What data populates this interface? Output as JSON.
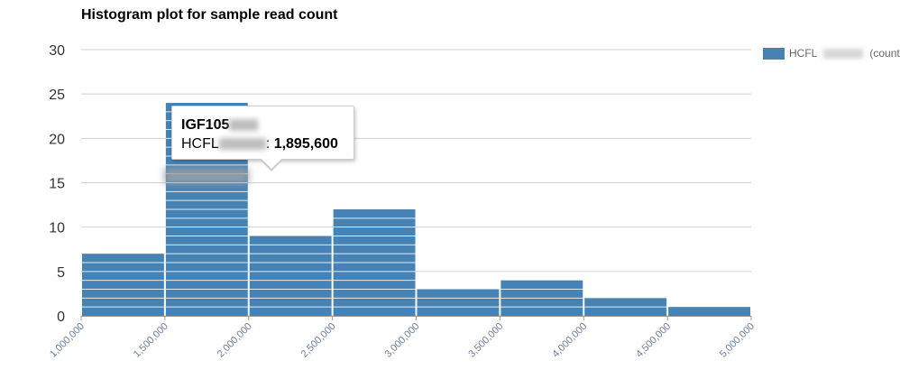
{
  "chart_data": {
    "type": "bar",
    "title": "Histogram plot for sample read count",
    "bins": [
      {
        "from": 1000000,
        "to": 1500000,
        "count": 7
      },
      {
        "from": 1500000,
        "to": 2000000,
        "count": 24
      },
      {
        "from": 2000000,
        "to": 2500000,
        "count": 9
      },
      {
        "from": 2500000,
        "to": 3000000,
        "count": 12
      },
      {
        "from": 3000000,
        "to": 3500000,
        "count": 3
      },
      {
        "from": 3500000,
        "to": 4000000,
        "count": 4
      },
      {
        "from": 4000000,
        "to": 4500000,
        "count": 2
      },
      {
        "from": 4500000,
        "to": 5000000,
        "count": 1
      }
    ],
    "x_ticks": [
      "1,000,000",
      "1,500,000",
      "2,000,000",
      "2,500,000",
      "3,000,000",
      "3,500,000",
      "4,000,000",
      "4,500,000",
      "5,000,000"
    ],
    "y_ticks": [
      "0",
      "5",
      "10",
      "15",
      "20",
      "25",
      "30"
    ],
    "xlim": [
      1000000,
      5000000
    ],
    "ylim": [
      0,
      30
    ],
    "grid": true,
    "legend": {
      "position": "top-right",
      "entries": [
        {
          "prefix": "HCFL",
          "suffix": "(count)",
          "color": "#4682b4"
        }
      ]
    },
    "series_color": "#4682b4"
  },
  "tooltip": {
    "title": "IGF105",
    "series_prefix": "HCFL",
    "separator": ":",
    "value": "1,895,600"
  }
}
